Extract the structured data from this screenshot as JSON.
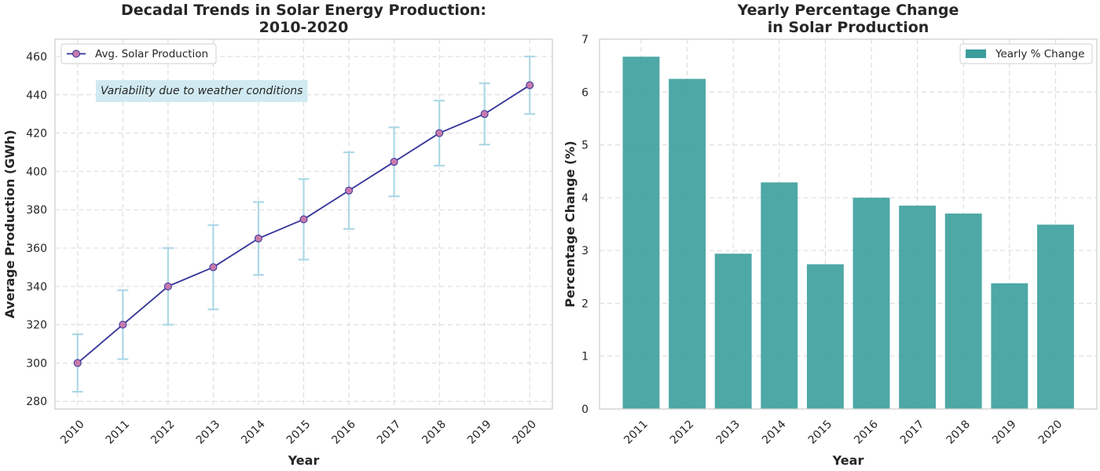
{
  "chart_data": [
    {
      "type": "line",
      "title": "Decadal Trends in Solar Energy Production:\n2010-2020",
      "xlabel": "Year",
      "ylabel": "Average Production (GWh)",
      "x": [
        2010,
        2011,
        2012,
        2013,
        2014,
        2015,
        2016,
        2017,
        2018,
        2019,
        2020
      ],
      "series": [
        {
          "name": "Avg. Solar Production",
          "values": [
            300,
            320,
            340,
            350,
            365,
            375,
            390,
            405,
            420,
            430,
            445
          ],
          "error": [
            15,
            18,
            20,
            22,
            19,
            21,
            20,
            18,
            17,
            16,
            15
          ]
        }
      ],
      "xlim": [
        2009.5,
        2020.5
      ],
      "ylim": [
        276,
        469
      ],
      "yticks": [
        280,
        300,
        320,
        340,
        360,
        380,
        400,
        420,
        440,
        460
      ],
      "annotation": "Variability due to weather conditions",
      "legend_position": "top-left",
      "grid": true,
      "colors": {
        "line": "#33339a",
        "marker": "#c77aac",
        "errorbar": "#add8e6",
        "annotation_bg": "#d1eaf1"
      }
    },
    {
      "type": "bar",
      "title": "Yearly Percentage Change\nin Solar Production",
      "xlabel": "Year",
      "ylabel": "Percentage Change (%)",
      "categories": [
        "2011",
        "2012",
        "2013",
        "2014",
        "2015",
        "2016",
        "2017",
        "2018",
        "2019",
        "2020"
      ],
      "series": [
        {
          "name": "Yearly % Change",
          "values": [
            6.67,
            6.25,
            2.94,
            4.29,
            2.74,
            4.0,
            3.85,
            3.7,
            2.38,
            3.49
          ]
        }
      ],
      "ylim": [
        0,
        7
      ],
      "yticks": [
        0,
        1,
        2,
        3,
        4,
        5,
        6,
        7
      ],
      "legend_position": "top-right",
      "grid": true,
      "colors": {
        "bar": "#3a9e9c"
      }
    }
  ]
}
